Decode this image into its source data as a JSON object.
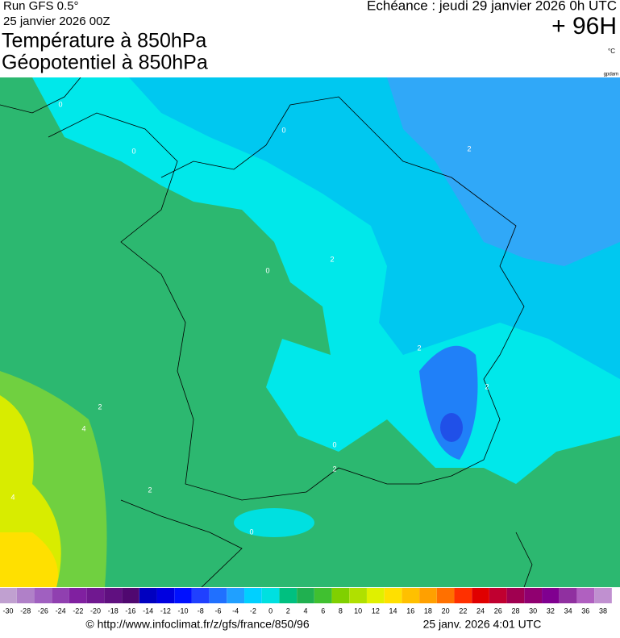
{
  "header": {
    "run": "Run GFS 0.5°",
    "date": "25 janvier 2026 00Z",
    "echeance": "Echéance : jeudi 29 janvier 2026 0h UTC",
    "lead": "+ 96H",
    "title1": "Température à 850hPa",
    "title2": "Géopotentiel à 850hPa",
    "unit": "°C",
    "unit2": "gpdam"
  },
  "map": {
    "contour_labels": [
      "0",
      "0",
      "0",
      "2",
      "0",
      "2",
      "2",
      "2",
      "4",
      "2",
      "0",
      "2",
      "2",
      "0",
      "4"
    ]
  },
  "scale": {
    "labels": [
      -30,
      -28,
      -26,
      -24,
      -22,
      -20,
      -18,
      -16,
      -14,
      -12,
      -10,
      -8,
      -6,
      -4,
      -2,
      0,
      2,
      4,
      6,
      8,
      10,
      12,
      14,
      16,
      18,
      20,
      22,
      24,
      26,
      28,
      30,
      32,
      34,
      36,
      38
    ],
    "colors": [
      "#c0a0d0",
      "#b080c8",
      "#a060c0",
      "#9040b0",
      "#8020a0",
      "#701890",
      "#601080",
      "#500870",
      "#0000c0",
      "#0000e0",
      "#0010ff",
      "#2040ff",
      "#2070ff",
      "#20a0ff",
      "#00d0ff",
      "#00e0e0",
      "#00c080",
      "#20b050",
      "#40c030",
      "#80d000",
      "#b0e000",
      "#e0f000",
      "#ffe000",
      "#ffc000",
      "#ffa000",
      "#ff7000",
      "#ff3000",
      "#e00000",
      "#c00030",
      "#a00050",
      "#900070",
      "#800090",
      "#9030a0",
      "#b060c0",
      "#c090d0"
    ]
  },
  "footer": {
    "url": "© http://www.infoclimat.fr/z/gfs/france/850/96",
    "stamp": "25 janv. 2026  4:01 UTC"
  }
}
